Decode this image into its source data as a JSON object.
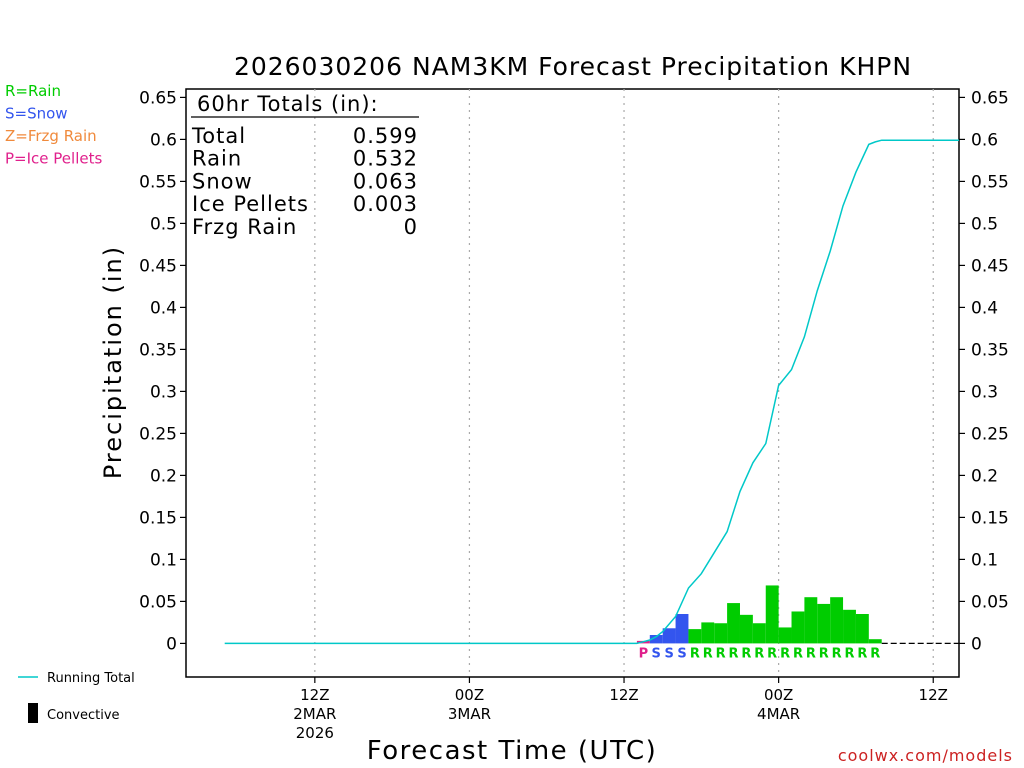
{
  "chart_data": {
    "type": "bar",
    "title": "2026030206 NAM3KM Forecast Precipitation KHPN",
    "xlabel": "Forecast Time (UTC)",
    "ylabel": "Precipitation (in)",
    "ylim": [
      -0.04,
      0.66
    ],
    "y_ticks": [
      0,
      0.05,
      0.1,
      0.15,
      0.2,
      0.25,
      0.3,
      0.35,
      0.4,
      0.45,
      0.5,
      0.55,
      0.6,
      0.65
    ],
    "y_tick_labels": [
      "0",
      "0.05",
      "0.1",
      "0.15",
      "0.2",
      "0.25",
      "0.3",
      "0.35",
      "0.4",
      "0.45",
      "0.5",
      "0.55",
      "0.6",
      "0.65"
    ],
    "x_range_hours": [
      -4,
      56
    ],
    "x_ticks": [
      {
        "hour": 6,
        "line1": "12Z",
        "line2": "2MAR",
        "line3": "2026"
      },
      {
        "hour": 18,
        "line1": "00Z",
        "line2": "3MAR",
        "line3": ""
      },
      {
        "hour": 30,
        "line1": "12Z",
        "line2": "",
        "line3": ""
      },
      {
        "hour": 42,
        "line1": "00Z",
        "line2": "4MAR",
        "line3": ""
      },
      {
        "hour": 54,
        "line1": "12Z",
        "line2": "",
        "line3": ""
      }
    ],
    "legend_types": [
      {
        "label": "R=Rain",
        "color": "#00cc00"
      },
      {
        "label": "S=Snow",
        "color": "#3355ee"
      },
      {
        "label": "Z=Frzg Rain",
        "color": "#f08a3c"
      },
      {
        "label": "P=Ice Pellets",
        "color": "#e0208c"
      }
    ],
    "legend_running_total": "Running Total",
    "legend_convective": "Convective",
    "totals_header": "60hr Totals (in):",
    "totals": [
      {
        "label": "Total",
        "value": "0.599"
      },
      {
        "label": "Rain",
        "value": "0.532"
      },
      {
        "label": "Snow",
        "value": "0.063"
      },
      {
        "label": "Ice Pellets",
        "value": "0.003"
      },
      {
        "label": "Frzg Rain",
        "value": "0"
      }
    ],
    "bars": [
      {
        "hour": 32,
        "value": 0.003,
        "type": "P"
      },
      {
        "hour": 33,
        "value": 0.01,
        "type": "S"
      },
      {
        "hour": 34,
        "value": 0.018,
        "type": "S"
      },
      {
        "hour": 35,
        "value": 0.035,
        "type": "S"
      },
      {
        "hour": 36,
        "value": 0.017,
        "type": "R"
      },
      {
        "hour": 37,
        "value": 0.025,
        "type": "R"
      },
      {
        "hour": 38,
        "value": 0.024,
        "type": "R"
      },
      {
        "hour": 39,
        "value": 0.048,
        "type": "R"
      },
      {
        "hour": 40,
        "value": 0.034,
        "type": "R"
      },
      {
        "hour": 41,
        "value": 0.024,
        "type": "R"
      },
      {
        "hour": 42,
        "value": 0.069,
        "type": "R"
      },
      {
        "hour": 43,
        "value": 0.019,
        "type": "R"
      },
      {
        "hour": 44,
        "value": 0.038,
        "type": "R"
      },
      {
        "hour": 45,
        "value": 0.055,
        "type": "R"
      },
      {
        "hour": 46,
        "value": 0.047,
        "type": "R"
      },
      {
        "hour": 47,
        "value": 0.055,
        "type": "R"
      },
      {
        "hour": 48,
        "value": 0.04,
        "type": "R"
      },
      {
        "hour": 49,
        "value": 0.035,
        "type": "R"
      },
      {
        "hour": 50,
        "value": 0.005,
        "type": "R"
      }
    ],
    "running_total": {
      "x": [
        -1,
        31,
        31.5,
        32,
        32.5,
        33,
        34,
        35,
        36,
        37,
        38,
        39,
        40,
        41,
        42,
        43,
        44,
        45,
        46,
        47,
        48,
        49,
        49.5,
        50,
        51,
        56
      ],
      "y": [
        0,
        0,
        0.002,
        0.004,
        0.008,
        0.014,
        0.032,
        0.066,
        0.083,
        0.108,
        0.133,
        0.181,
        0.215,
        0.238,
        0.307,
        0.326,
        0.365,
        0.42,
        0.467,
        0.521,
        0.561,
        0.594,
        0.597,
        0.599,
        0.599,
        0.599
      ]
    },
    "colors": {
      "running_total": "#00c8c8",
      "rain": "#00cc00",
      "snow": "#3355ee",
      "ice_pellets": "#e0208c",
      "frzg_rain": "#f08a3c",
      "grid": "#aaaaaa"
    }
  },
  "credit": "coolwx.com/models"
}
